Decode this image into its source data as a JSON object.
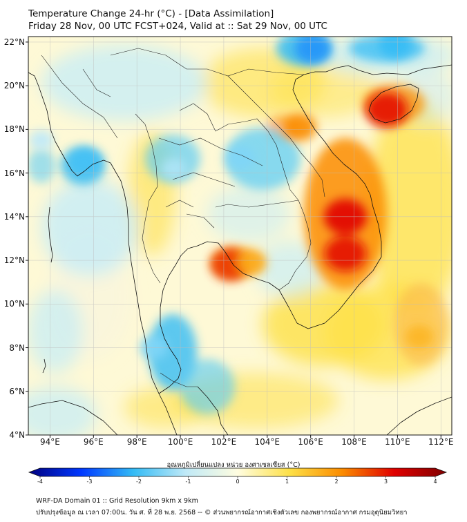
{
  "title": {
    "line1": "Temperature Change 24-hr (°C) - [Data Assimilation]",
    "line2": "Friday 28 Nov, 00 UTC FCST+024, Valid at :: Sat 29 Nov, 00 UTC"
  },
  "map": {
    "lon_range": [
      93,
      112.5
    ],
    "lat_range": [
      4,
      22.25
    ],
    "lat_ticks": [
      "22°N",
      "20°N",
      "18°N",
      "16°N",
      "14°N",
      "12°N",
      "10°N",
      "8°N",
      "6°N",
      "4°N"
    ],
    "lon_ticks": [
      "94°E",
      "96°E",
      "98°E",
      "100°E",
      "102°E",
      "104°E",
      "106°E",
      "108°E",
      "110°E",
      "112°E"
    ],
    "warm_anomalies": [
      {
        "name": "southern-vietnam-highlands",
        "lon": 107.6,
        "lat": 14.0,
        "value": 3.0
      },
      {
        "name": "central-vietnam-south",
        "lon": 107.6,
        "lat": 12.3,
        "value": 2.9
      },
      {
        "name": "hainan",
        "lon": 109.5,
        "lat": 18.9,
        "value": 2.9
      },
      {
        "name": "cambodia-west-coast",
        "lon": 102.3,
        "lat": 11.8,
        "value": 2.6
      },
      {
        "name": "north-vietnam-ha-tinh",
        "lon": 105.5,
        "lat": 18.1,
        "value": 2.0
      },
      {
        "name": "gulf-of-thailand-east",
        "lon": 103.3,
        "lat": 11.9,
        "value": 1.6
      },
      {
        "name": "south-china-sea-east",
        "lon": 111.0,
        "lat": 8.5,
        "value": 1.5
      }
    ],
    "cold_anomalies": [
      {
        "name": "guangxi-north",
        "lon": 106.1,
        "lat": 21.7,
        "value": -2.3
      },
      {
        "name": "guangdong-north",
        "lon": 109.9,
        "lat": 21.9,
        "value": -2.0
      },
      {
        "name": "andaman-sea-north",
        "lon": 95.6,
        "lat": 16.5,
        "value": -1.9
      },
      {
        "name": "northeast-thailand",
        "lon": 102.8,
        "lat": 16.7,
        "value": -1.5
      },
      {
        "name": "southern-thailand-west",
        "lon": 98.8,
        "lat": 8.0,
        "value": -1.5
      },
      {
        "name": "bay-of-bengal-west",
        "lon": 93.6,
        "lat": 17.5,
        "value": -1.1
      },
      {
        "name": "myanmar-central",
        "lon": 99.7,
        "lat": 16.2,
        "value": -1.2
      }
    ]
  },
  "colorbar": {
    "title": "อุณหภูมิเปลี่ยนแปลง หน่วย องศาเซลเซียส (°C)",
    "min": -4,
    "max": 4,
    "ticks": [
      "-4",
      "-3",
      "-2",
      "-1",
      "0",
      "1",
      "2",
      "3",
      "4"
    ],
    "colors": [
      "#000080",
      "#0038ff",
      "#33bbf5",
      "#cdeef8",
      "#fffde0",
      "#fde047",
      "#fb8c00",
      "#e00000",
      "#800000"
    ]
  },
  "footer": {
    "line1": "WRF-DA Domain 01 :: Grid Resolution 9km x 9km",
    "line2": "ปรับปรุงข้อมูล ณ เวลา 07:00น. วัน ศ. ที่ 28 พ.ย. 2568 -- © ส่วนพยากรณ์อากาศเชิงตัวเลข กองพยากรณ์อากาศ กรมอุตุนิยมวิทยา"
  }
}
